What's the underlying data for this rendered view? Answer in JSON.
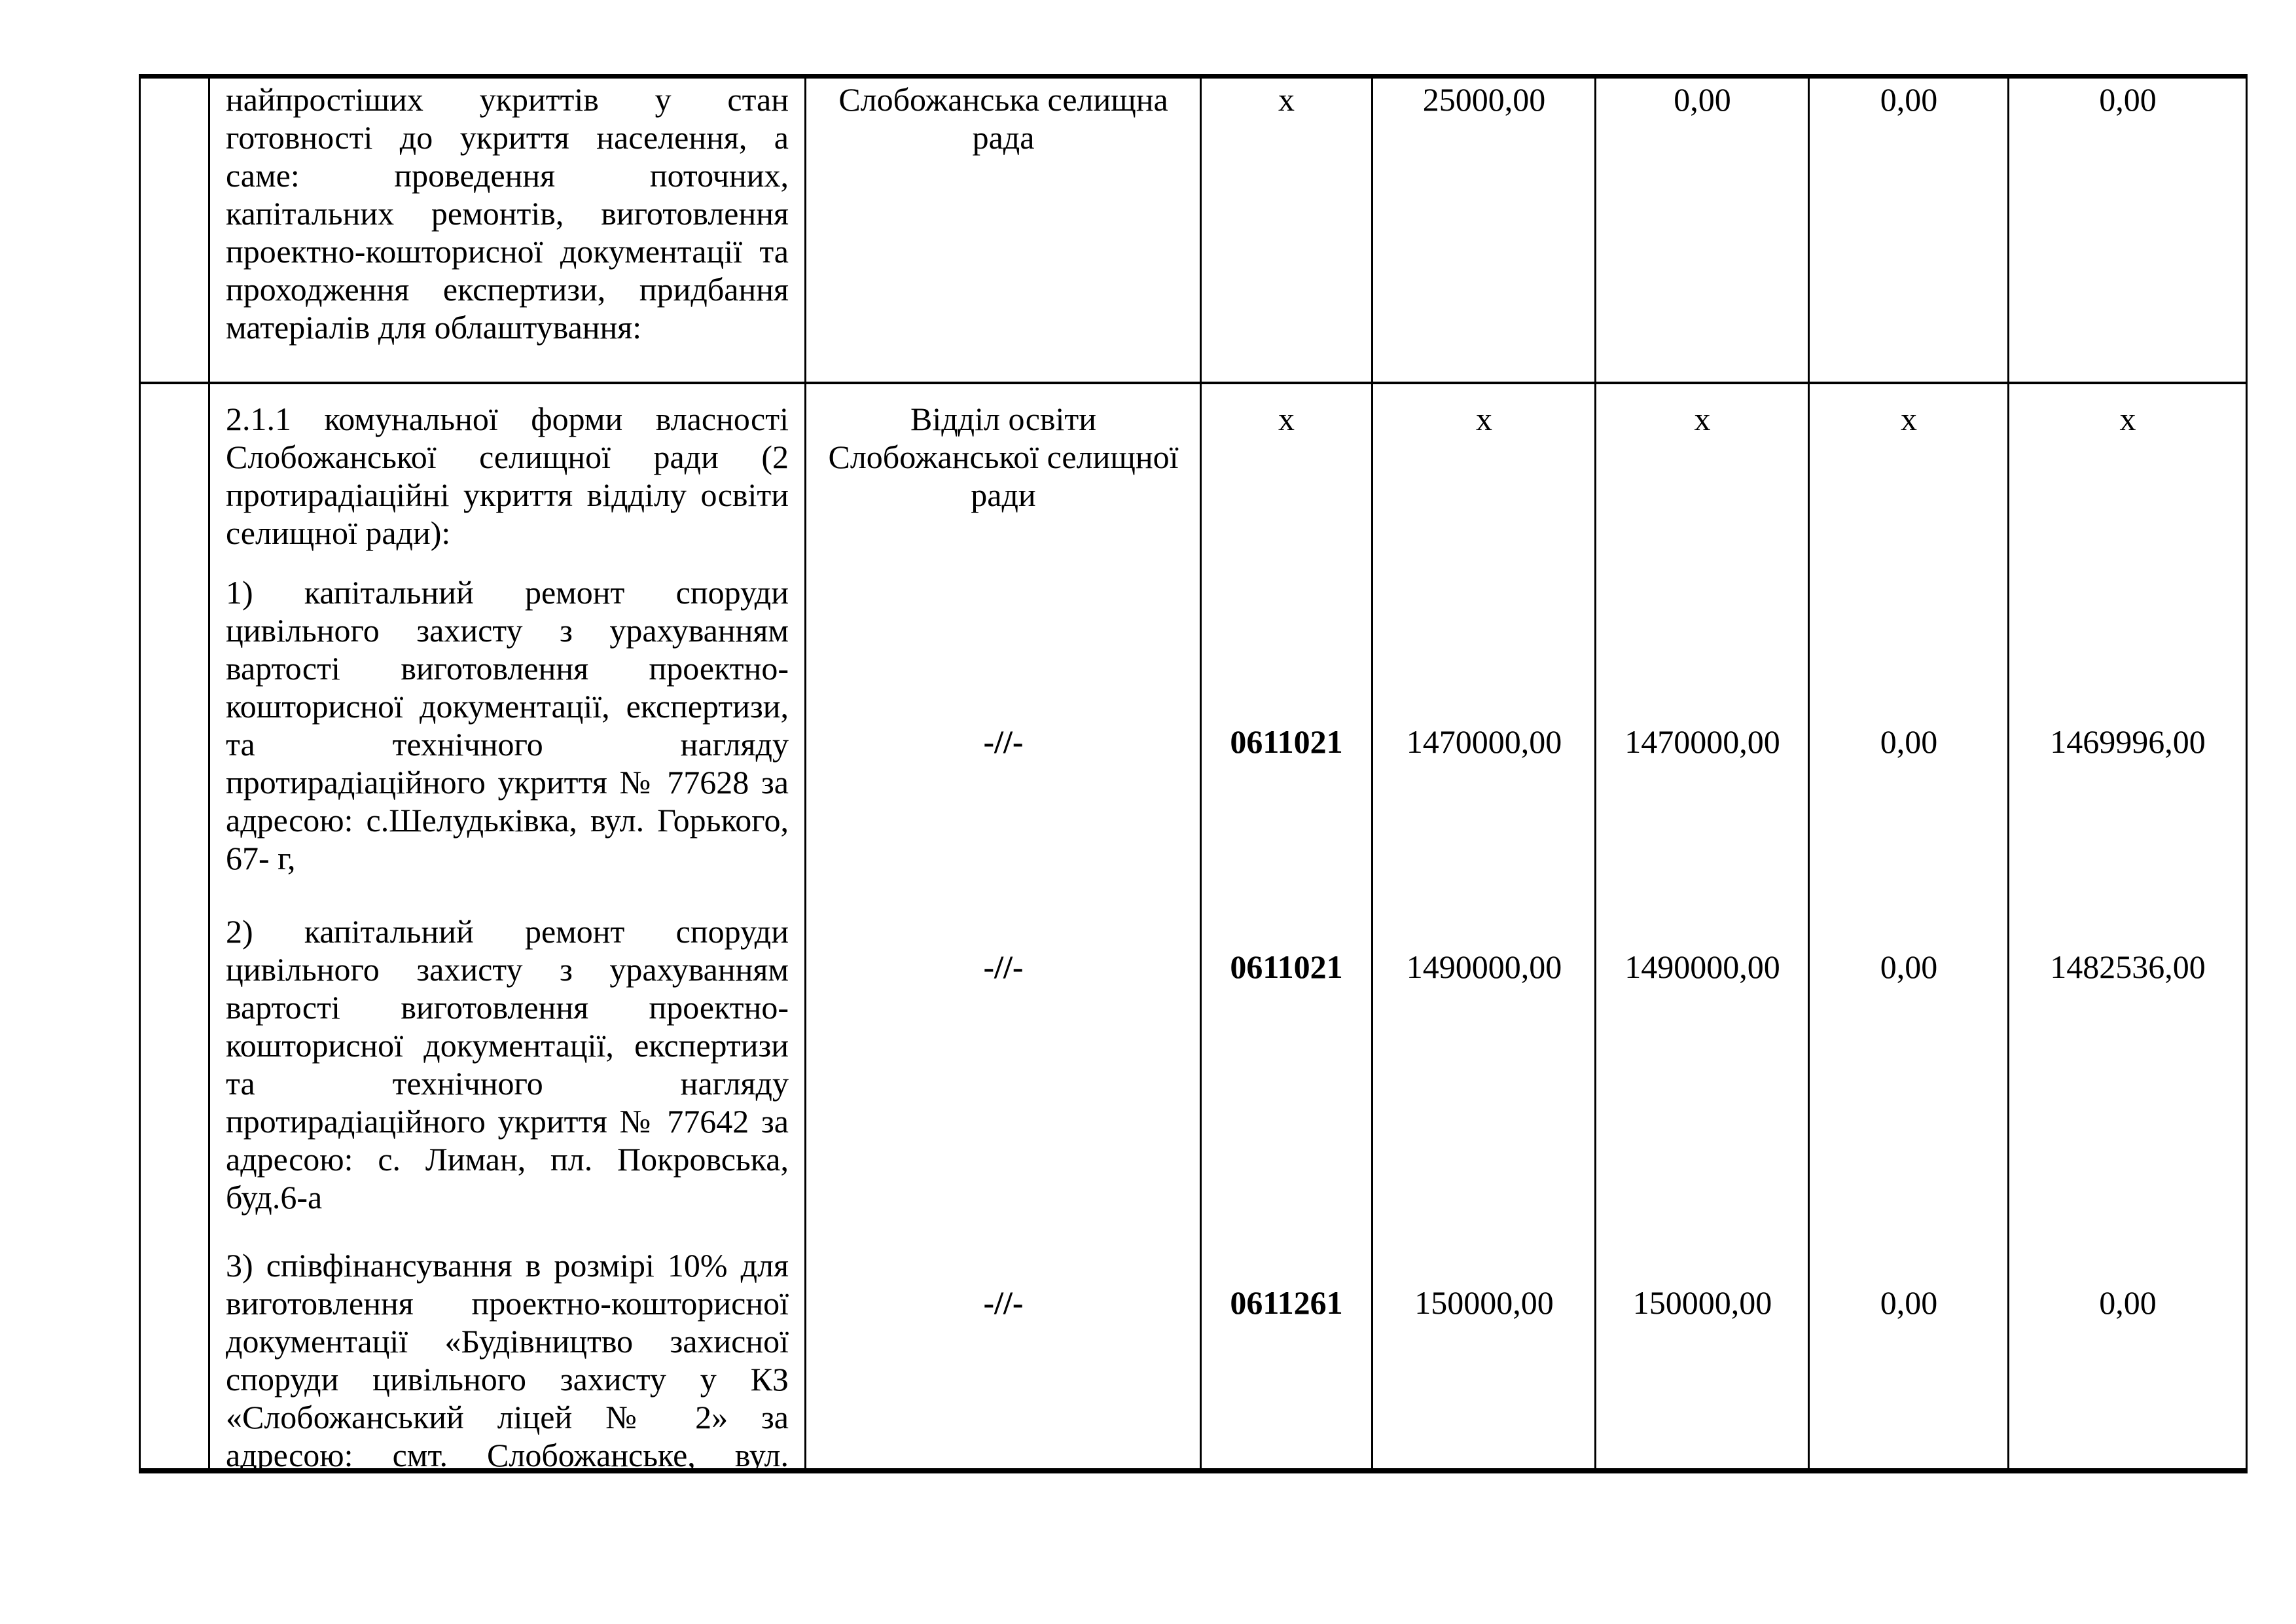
{
  "table": {
    "border_color": "#000000",
    "text_color": "#000000",
    "row1": {
      "number": "",
      "description_lines": [
        "найпростіших укриттів у стан",
        "готовності до укриття населення, а",
        "саме: проведення поточних,",
        "капітальних ремонтів, виготовлення",
        "проектно-кошторисної документації та",
        "проходження експертизи, придбання",
        "матеріалів для облаштування:"
      ],
      "executor_lines": [
        "Слобожанська селищна",
        "рада"
      ],
      "code": "x",
      "values": [
        "25000,00",
        "0,00",
        "0,00",
        "0,00"
      ]
    },
    "row2": {
      "number": "",
      "intro_lines": [
        "2.1.1 комунальної форми власності",
        "Слобожанської селищної ради (2",
        "протирадіаційні укриття відділу освіти",
        "селищної ради):"
      ],
      "executor_lines": [
        "Відділ освіти",
        "Слобожанської селищної",
        "ради"
      ],
      "code_mark": "x",
      "value_marks": [
        "x",
        "x",
        "x",
        "x"
      ],
      "items": [
        {
          "text_lines": [
            "1) капітальний ремонт споруди",
            "цивільного захисту з урахуванням",
            "вартості виготовлення проектно-",
            "кошторисної документації, експертизи,",
            "та технічного нагляду",
            "протирадіаційного укриття № 77628 за",
            "адресою: с.Шелудьківка, вул. Горького,",
            "67- г,"
          ],
          "executor": "-//-",
          "code": "0611021",
          "values": [
            "1470000,00",
            "1470000,00",
            "0,00",
            "1469996,00"
          ]
        },
        {
          "text_lines": [
            "2) капітальний ремонт споруди",
            "цивільного захисту з урахуванням",
            "вартості виготовлення проектно-",
            "кошторисної документації, експертизи",
            "та технічного нагляду",
            "протирадіаційного укриття № 77642 за",
            "адресою: с. Лиман, пл. Покровська,",
            "буд.6-а"
          ],
          "executor": "-//-",
          "code": "0611021",
          "values": [
            "1490000,00",
            "1490000,00",
            "0,00",
            "1482536,00"
          ]
        },
        {
          "text_lines": [
            "3) співфінансування в розмірі 10% для",
            "виготовлення проектно-кошторисної",
            "документації «Будівництво захисної",
            "споруди цивільного захисту у КЗ",
            "«Слобожанський ліцей № 2» за",
            "адресою: смт. Слобожанське, вул."
          ],
          "executor": "-//-",
          "code": "0611261",
          "values": [
            "150000,00",
            "150000,00",
            "0,00",
            "0,00"
          ]
        }
      ]
    }
  }
}
